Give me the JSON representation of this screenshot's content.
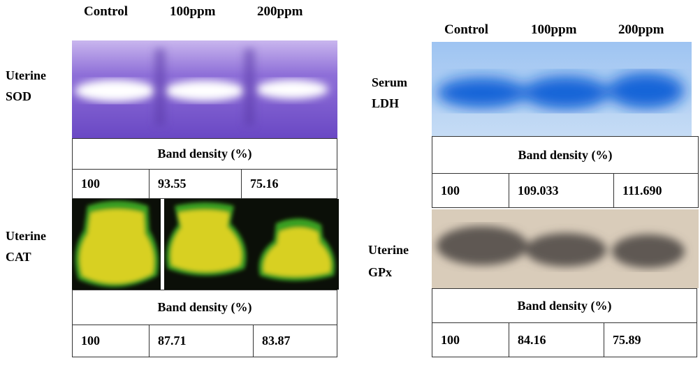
{
  "panels": [
    {
      "headers": [
        "Control",
        "100ppm",
        "200ppm"
      ],
      "blots": [
        {
          "label": [
            "Uterine",
            "SOD"
          ],
          "table_title": "Band density (%)",
          "values": [
            "100",
            "93.55",
            "75.16"
          ]
        },
        {
          "label": [
            "Uterine",
            "CAT"
          ],
          "table_title": "Band density (%)",
          "values": [
            "100",
            "87.71",
            "83.87"
          ]
        }
      ]
    },
    {
      "headers": [
        "Control",
        "100ppm",
        "200ppm"
      ],
      "blots": [
        {
          "label": [
            "Serum",
            "LDH"
          ],
          "table_title": "Band density (%)",
          "values": [
            "100",
            "109.033",
            "111.690"
          ]
        },
        {
          "label": [
            "Uterine",
            "GPx"
          ],
          "table_title": "Band density (%)",
          "values": [
            "100",
            "84.16",
            "75.89"
          ]
        }
      ]
    }
  ]
}
